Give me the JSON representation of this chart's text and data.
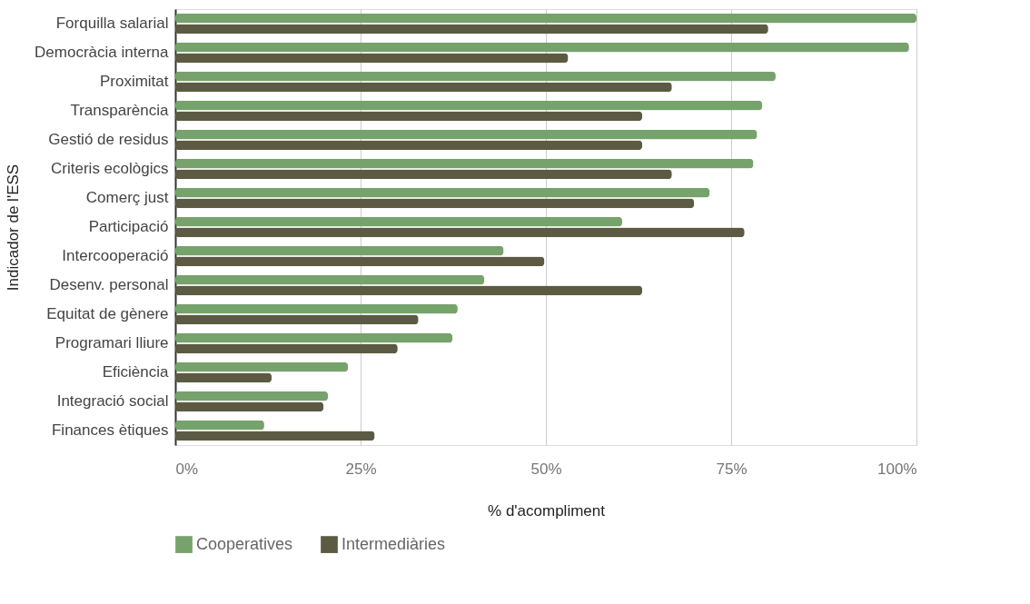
{
  "chart_data": {
    "type": "bar",
    "orientation": "horizontal",
    "ylabel": "Indicador de l'ESS",
    "xlabel": "% d'acompliment",
    "categories": [
      "Forquilla salarial",
      "Democràcia interna",
      "Proximitat",
      "Transparència",
      "Gestió de residus",
      "Criteris ecològics",
      "Comerç just",
      "Participació",
      "Intercooperació",
      "Desenv. personal",
      "Equitat de gènere",
      "Programari lliure",
      "Eficiència",
      "Integració social",
      "Finances ètiques"
    ],
    "series": [
      {
        "name": "Cooperatives",
        "color": "#76a26b",
        "values": [
          100,
          99,
          81,
          79.2,
          78.5,
          78,
          72.1,
          60.3,
          44.3,
          41.7,
          38.1,
          37.4,
          23.3,
          20.6,
          12
        ]
      },
      {
        "name": "Intermediàries",
        "color": "#5c5a42",
        "values": [
          80,
          53,
          67,
          63,
          63,
          67,
          70,
          76.8,
          49.8,
          63,
          32.8,
          30,
          13,
          20,
          26.9
        ]
      }
    ],
    "xlim": [
      0,
      100
    ],
    "xticks": [
      {
        "value": 0,
        "label": "0%"
      },
      {
        "value": 25,
        "label": "25%"
      },
      {
        "value": 50,
        "label": "50%"
      },
      {
        "value": 75,
        "label": "75%"
      },
      {
        "value": 100,
        "label": "100%"
      }
    ],
    "grid": "x",
    "legend": "bottom"
  }
}
